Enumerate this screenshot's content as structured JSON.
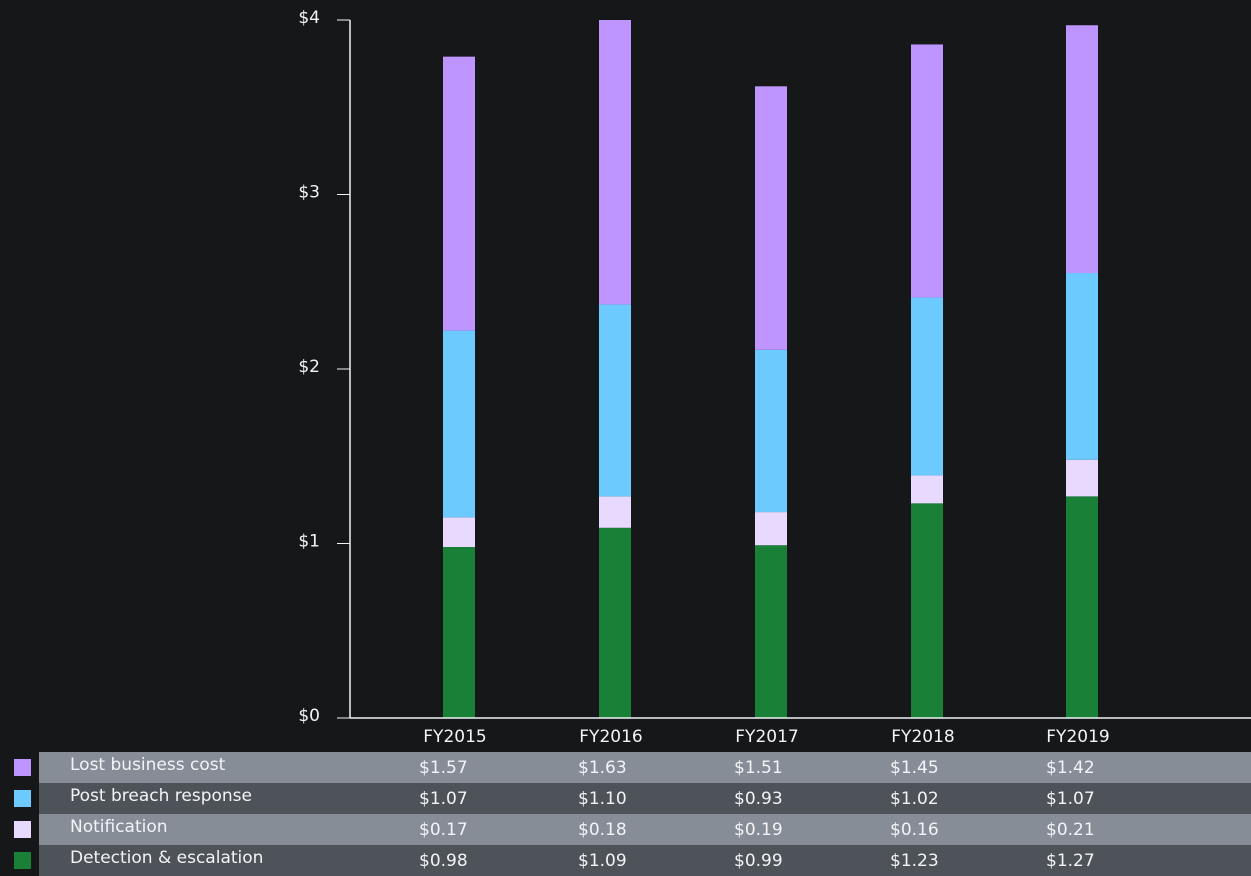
{
  "chart_data": {
    "type": "bar",
    "stacked": true,
    "categories": [
      "FY2015",
      "FY2016",
      "FY2017",
      "FY2018",
      "FY2019"
    ],
    "y_ticks": [
      "$0",
      "$1",
      "$2",
      "$3",
      "$4"
    ],
    "ylim": [
      0,
      4
    ],
    "grid": false,
    "legend_position": "bottom table",
    "series": [
      {
        "name": "Lost business cost",
        "color": "#be95ff",
        "values": [
          1.57,
          1.63,
          1.51,
          1.45,
          1.42
        ],
        "labels": [
          "$1.57",
          "$1.63",
          "$1.51",
          "$1.45",
          "$1.42"
        ]
      },
      {
        "name": "Post breach response",
        "color": "#6ccaff",
        "values": [
          1.07,
          1.1,
          0.93,
          1.02,
          1.07
        ],
        "labels": [
          "$1.07",
          "$1.10",
          "$0.93",
          "$1.02",
          "$1.07"
        ]
      },
      {
        "name": "Notification",
        "color": "#e8daff",
        "values": [
          0.17,
          0.18,
          0.19,
          0.16,
          0.21
        ],
        "labels": [
          "$0.17",
          "$0.18",
          "$0.19",
          "$0.16",
          "$0.21"
        ]
      },
      {
        "name": "Detection & escalation",
        "color": "#198038",
        "values": [
          0.98,
          1.09,
          0.99,
          1.23,
          1.27
        ],
        "labels": [
          "$0.98",
          "$1.09",
          "$0.99",
          "$1.23",
          "$1.27"
        ]
      }
    ]
  }
}
